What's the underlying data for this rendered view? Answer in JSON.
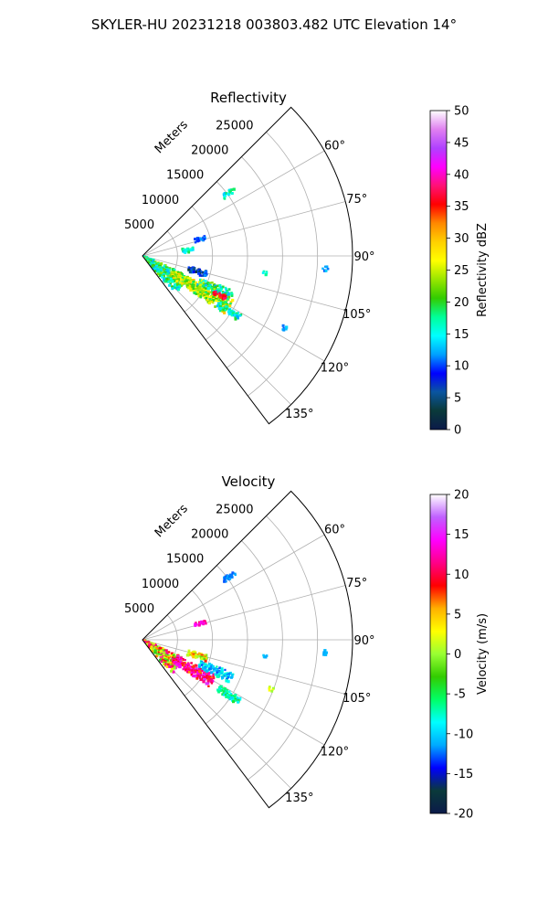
{
  "figure": {
    "suptitle": "SKYLER-HU  20231218  003803.482 UTC Elevation 14°"
  },
  "chart_data": [
    {
      "type": "heatmap",
      "projection": "polar-sector",
      "title": "Reflectivity",
      "radial_label": "Meters",
      "radial_ticks": [
        5000,
        10000,
        15000,
        20000,
        25000
      ],
      "r_max": 30000,
      "theta_min_deg": 45,
      "theta_max_deg": 143,
      "theta_ticks": [
        60,
        75,
        90,
        105,
        120,
        135
      ],
      "theta_tick_labels": [
        "60°",
        "75°",
        "90°",
        "105°",
        "120°",
        "135°"
      ],
      "grid": true,
      "colorbar": {
        "label": "Reflectivity dBZ",
        "min": 0,
        "max": 50,
        "ticks": [
          0,
          5,
          10,
          15,
          20,
          25,
          30,
          35,
          40,
          45,
          50
        ],
        "stops": [
          "#0b1a4a",
          "#0a3a3a",
          "#0a55a0",
          "#0000ff",
          "#00a0ff",
          "#00ffff",
          "#00ff99",
          "#33cc00",
          "#99e600",
          "#ffff00",
          "#ffd000",
          "#ff8800",
          "#ff0000",
          "#ff1177",
          "#ff00ff",
          "#b040ff",
          "#e080f0",
          "#ffffff"
        ]
      },
      "echoes": [
        {
          "az": 126,
          "r0": 200,
          "r1": 7000,
          "dr": 400,
          "dt": 1.6,
          "hw": 8,
          "vmin": 12,
          "vmax": 24
        },
        {
          "az": 120.5,
          "r0": 5000,
          "r1": 14500,
          "dr": 400,
          "dt": 1.0,
          "hw": 6,
          "vmin": 18,
          "vmax": 30
        },
        {
          "az": 114,
          "r0": 9000,
          "r1": 14000,
          "dr": 400,
          "dt": 1.0,
          "hw": 4,
          "vmin": 12,
          "vmax": 26
        },
        {
          "az": 117,
          "r0": 11500,
          "r1": 13500,
          "dr": 300,
          "dt": 0.8,
          "hw": 2,
          "vmin": 33,
          "vmax": 38
        },
        {
          "az": 122.5,
          "r0": 13000,
          "r1": 16500,
          "dr": 400,
          "dt": 0.8,
          "hw": 3,
          "vmin": 12,
          "vmax": 20
        },
        {
          "az": 106,
          "r0": 7000,
          "r1": 9500,
          "dr": 400,
          "dt": 0.8,
          "hw": 4,
          "vmin": 2,
          "vmax": 12
        },
        {
          "az": 74,
          "r0": 8000,
          "r1": 9500,
          "dr": 400,
          "dt": 1.0,
          "hw": 2,
          "vmin": 9,
          "vmax": 12
        },
        {
          "az": 54,
          "r0": 14500,
          "r1": 16200,
          "dr": 400,
          "dt": 0.8,
          "hw": 2,
          "vmin": 13,
          "vmax": 19
        },
        {
          "az": 83,
          "r0": 6000,
          "r1": 7500,
          "dr": 400,
          "dt": 1.0,
          "hw": 3,
          "vmin": 12,
          "vmax": 20
        },
        {
          "az": 98,
          "r0": 17500,
          "r1": 18200,
          "dr": 400,
          "dt": 1.0,
          "hw": 1,
          "vmin": 14,
          "vmax": 18
        },
        {
          "az": 94,
          "r0": 26000,
          "r1": 26600,
          "dr": 400,
          "dt": 1.0,
          "hw": 1,
          "vmin": 10,
          "vmax": 14
        },
        {
          "az": 117,
          "r0": 22500,
          "r1": 23000,
          "dr": 400,
          "dt": 1.0,
          "hw": 1,
          "vmin": 10,
          "vmax": 14
        }
      ]
    },
    {
      "type": "heatmap",
      "projection": "polar-sector",
      "title": "Velocity",
      "radial_label": "Meters",
      "radial_ticks": [
        5000,
        10000,
        15000,
        20000,
        25000
      ],
      "r_max": 30000,
      "theta_min_deg": 45,
      "theta_max_deg": 143,
      "theta_ticks": [
        60,
        75,
        90,
        105,
        120,
        135
      ],
      "theta_tick_labels": [
        "60°",
        "75°",
        "90°",
        "105°",
        "120°",
        "135°"
      ],
      "grid": true,
      "colorbar": {
        "label": "Velocity (m/s)",
        "min": -20,
        "max": 20,
        "ticks": [
          -20,
          -15,
          -10,
          -5,
          0,
          5,
          10,
          15,
          20
        ],
        "stops": [
          "#0b1a4a",
          "#0a3a3a",
          "#0000ff",
          "#00aaff",
          "#00ffff",
          "#00ff66",
          "#33cc00",
          "#99ff33",
          "#ffff00",
          "#ffb000",
          "#ff0000",
          "#ff0088",
          "#ff00ff",
          "#c060ff",
          "#ffffff"
        ]
      },
      "echoes": [
        {
          "az": 126,
          "r0": 200,
          "r1": 6500,
          "dr": 400,
          "dt": 1.6,
          "hw": 8,
          "vmin": -4,
          "vmax": 14
        },
        {
          "az": 120.5,
          "r0": 5500,
          "r1": 11500,
          "dr": 400,
          "dt": 1.0,
          "hw": 6,
          "vmin": 6,
          "vmax": 16
        },
        {
          "az": 113,
          "r0": 9000,
          "r1": 14000,
          "dr": 400,
          "dt": 1.0,
          "hw": 4,
          "vmin": -13,
          "vmax": -7
        },
        {
          "az": 122.5,
          "r0": 13000,
          "r1": 16500,
          "dr": 400,
          "dt": 0.8,
          "hw": 3,
          "vmin": -10,
          "vmax": -4
        },
        {
          "az": 106,
          "r0": 7000,
          "r1": 9500,
          "dr": 400,
          "dt": 0.8,
          "hw": 4,
          "vmin": -2,
          "vmax": 8
        },
        {
          "az": 74,
          "r0": 8000,
          "r1": 9500,
          "dr": 400,
          "dt": 1.0,
          "hw": 2,
          "vmin": 10,
          "vmax": 16
        },
        {
          "az": 54,
          "r0": 14500,
          "r1": 16200,
          "dr": 400,
          "dt": 0.8,
          "hw": 2,
          "vmin": -13,
          "vmax": -11
        },
        {
          "az": 98,
          "r0": 17500,
          "r1": 18200,
          "dr": 400,
          "dt": 1.0,
          "hw": 1,
          "vmin": -12,
          "vmax": -10
        },
        {
          "az": 94,
          "r0": 26000,
          "r1": 26600,
          "dr": 400,
          "dt": 1.0,
          "hw": 1,
          "vmin": -12,
          "vmax": -10
        },
        {
          "az": 111,
          "r0": 19500,
          "r1": 20000,
          "dr": 400,
          "dt": 1.0,
          "hw": 1,
          "vmin": 0,
          "vmax": 3
        }
      ]
    }
  ]
}
